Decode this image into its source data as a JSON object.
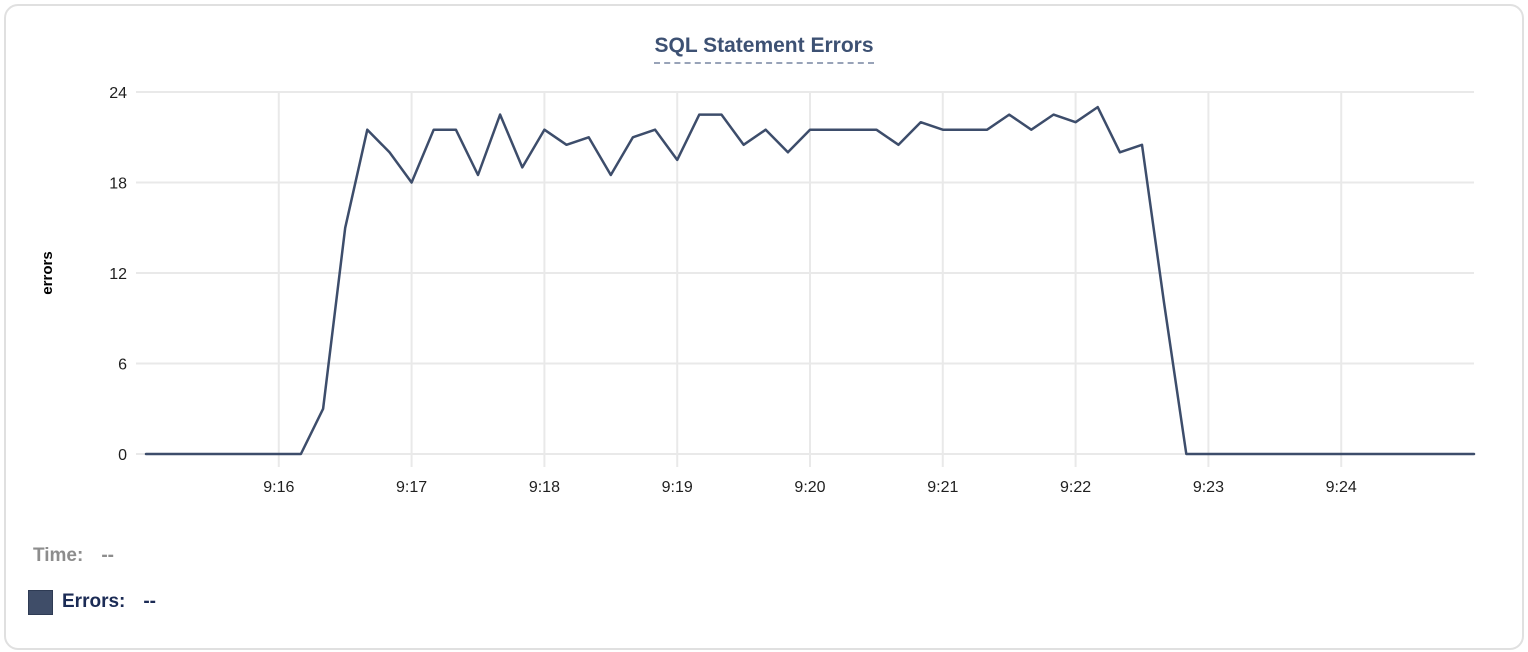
{
  "chart_data": {
    "type": "line",
    "title": "SQL Statement Errors",
    "ylabel": "errors",
    "series_name": "Errors",
    "ylim": [
      0,
      24
    ],
    "yticks": [
      0,
      6,
      12,
      18,
      24
    ],
    "xticks": [
      "9:16",
      "9:17",
      "9:18",
      "9:19",
      "9:20",
      "9:21",
      "9:22",
      "9:23",
      "9:24"
    ],
    "x_domain": [
      "9:15:00",
      "9:25:00"
    ],
    "grid": true,
    "x": [
      "9:15:00",
      "9:15:10",
      "9:15:20",
      "9:15:30",
      "9:15:40",
      "9:15:50",
      "9:16:00",
      "9:16:10",
      "9:16:20",
      "9:16:30",
      "9:16:40",
      "9:16:50",
      "9:17:00",
      "9:17:10",
      "9:17:20",
      "9:17:30",
      "9:17:40",
      "9:17:50",
      "9:18:00",
      "9:18:10",
      "9:18:20",
      "9:18:30",
      "9:18:40",
      "9:18:50",
      "9:19:00",
      "9:19:10",
      "9:19:20",
      "9:19:30",
      "9:19:40",
      "9:19:50",
      "9:20:00",
      "9:20:10",
      "9:20:20",
      "9:20:30",
      "9:20:40",
      "9:20:50",
      "9:21:00",
      "9:21:10",
      "9:21:20",
      "9:21:30",
      "9:21:40",
      "9:21:50",
      "9:22:00",
      "9:22:10",
      "9:22:20",
      "9:22:30",
      "9:22:40",
      "9:22:50",
      "9:23:00",
      "9:23:10",
      "9:23:20",
      "9:23:30",
      "9:23:40",
      "9:23:50",
      "9:24:00",
      "9:24:10",
      "9:24:20",
      "9:24:30",
      "9:24:40",
      "9:24:50",
      "9:25:00"
    ],
    "values": [
      0,
      0,
      0,
      0,
      0,
      0,
      0,
      0,
      3,
      15,
      21.5,
      20,
      18,
      21.5,
      21.5,
      18.5,
      22.5,
      19,
      21.5,
      20.5,
      21,
      18.5,
      21,
      21.5,
      19.5,
      22.5,
      22.5,
      20.5,
      21.5,
      20,
      21.5,
      21.5,
      21.5,
      21.5,
      20.5,
      22,
      21.5,
      21.5,
      21.5,
      22.5,
      21.5,
      22.5,
      22,
      23,
      20,
      20.5,
      10,
      0,
      0,
      0,
      0,
      0,
      0,
      0,
      0,
      0,
      0,
      0,
      0,
      0,
      0
    ]
  },
  "tooltip_readout": {
    "time_label": "Time:",
    "time_value": "--",
    "errors_label": "Errors:",
    "errors_value": "--"
  },
  "colors": {
    "line": "#3d4d6b",
    "swatch": "#3f4d68",
    "title": "#3d5173",
    "grid": "#e9e9e9",
    "tick_text": "#1f1f1f",
    "time_text": "#8d8d8d",
    "errors_text": "#1b2b55"
  }
}
